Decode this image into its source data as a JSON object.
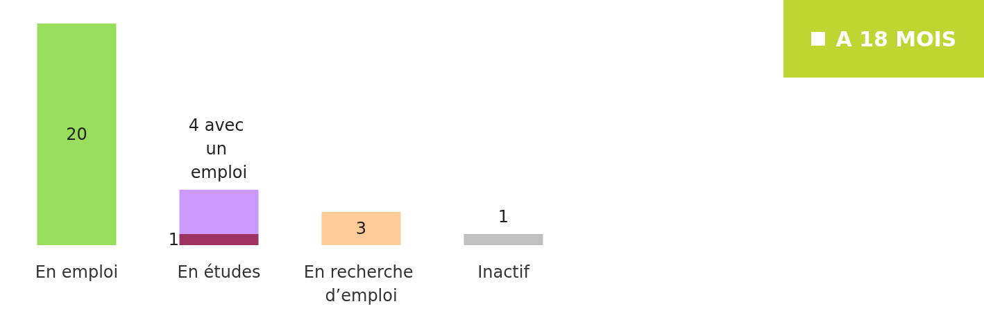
{
  "chart_data": {
    "type": "bar",
    "title": "A 18 MOIS",
    "stacked": true,
    "categories": [
      "En emploi",
      "En études",
      "En recherche d’emploi",
      "Inactif"
    ],
    "series": [
      {
        "colors": [
          "#97de5d",
          "#9e3260",
          "#ffcb99",
          "#c0c0c0"
        ],
        "values": [
          20,
          1,
          3,
          1
        ],
        "value_labels": [
          "20",
          "1",
          "3",
          "1"
        ]
      },
      {
        "color": "#cc99ff",
        "values": [
          null,
          4,
          null,
          null
        ],
        "value_labels": [
          null,
          "4 avec un emploi",
          null,
          null
        ]
      }
    ]
  }
}
